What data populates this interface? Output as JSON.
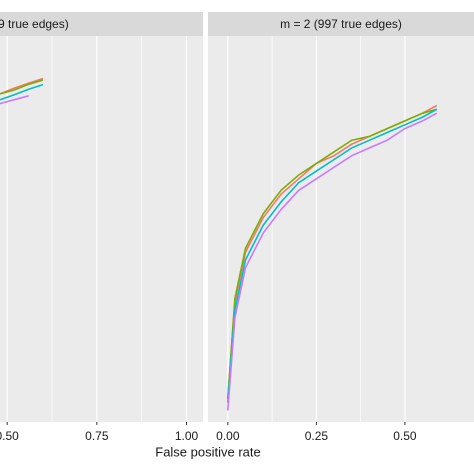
{
  "x_label": "False positive rate",
  "chart_data": [
    {
      "type": "line",
      "strip": "9 true edges)",
      "grid": true,
      "xlim": [
        0.48,
        1.046
      ],
      "xticks": [
        {
          "value": 0.5,
          "label": "0.50"
        },
        0.75,
        {
          "value": 1,
          "label": "1.00"
        }
      ],
      "ylim": [
        0,
        1
      ],
      "x": [
        0.48,
        0.52,
        0.56,
        0.6
      ],
      "series": [
        {
          "color": "#F8766D",
          "values": [
            0.85,
            0.865,
            0.878,
            0.89
          ]
        },
        {
          "color": "#7CAE00",
          "values": [
            0.85,
            0.86,
            0.875,
            0.886
          ]
        },
        {
          "color": "#00BFC4",
          "values": [
            0.835,
            0.848,
            0.862,
            0.874
          ]
        },
        {
          "color": "#C77CFF",
          "values": [
            0.825,
            0.835,
            0.845,
            null
          ]
        }
      ]
    },
    {
      "type": "line",
      "strip": "m = 2 (997 true edges)",
      "grid": true,
      "xlim": [
        -0.056,
        0.695
      ],
      "xticks": [
        {
          "value": 0,
          "label": "0.00"
        },
        0.25,
        {
          "value": 0.5,
          "label": "0.50"
        }
      ],
      "ylim": [
        0,
        1
      ],
      "x": [
        0,
        0.02,
        0.05,
        0.1,
        0.15,
        0.2,
        0.25,
        0.3,
        0.35,
        0.4,
        0.45,
        0.5,
        0.55,
        0.59
      ],
      "series": [
        {
          "color": "#F8766D",
          "values": [
            0.06,
            0.31,
            0.44,
            0.53,
            0.59,
            0.63,
            0.67,
            0.69,
            0.72,
            0.74,
            0.76,
            0.78,
            0.8,
            0.82
          ]
        },
        {
          "color": "#7CAE00",
          "values": [
            0.06,
            0.32,
            0.45,
            0.54,
            0.6,
            0.64,
            0.67,
            0.7,
            0.73,
            0.74,
            0.76,
            0.78,
            0.8,
            0.81
          ]
        },
        {
          "color": "#00BFC4",
          "values": [
            0.05,
            0.29,
            0.42,
            0.51,
            0.57,
            0.62,
            0.65,
            0.68,
            0.71,
            0.73,
            0.75,
            0.77,
            0.79,
            0.81
          ]
        },
        {
          "color": "#C77CFF",
          "values": [
            0.03,
            0.27,
            0.4,
            0.49,
            0.55,
            0.6,
            0.63,
            0.66,
            0.69,
            0.71,
            0.73,
            0.76,
            0.78,
            0.8
          ]
        }
      ]
    }
  ]
}
